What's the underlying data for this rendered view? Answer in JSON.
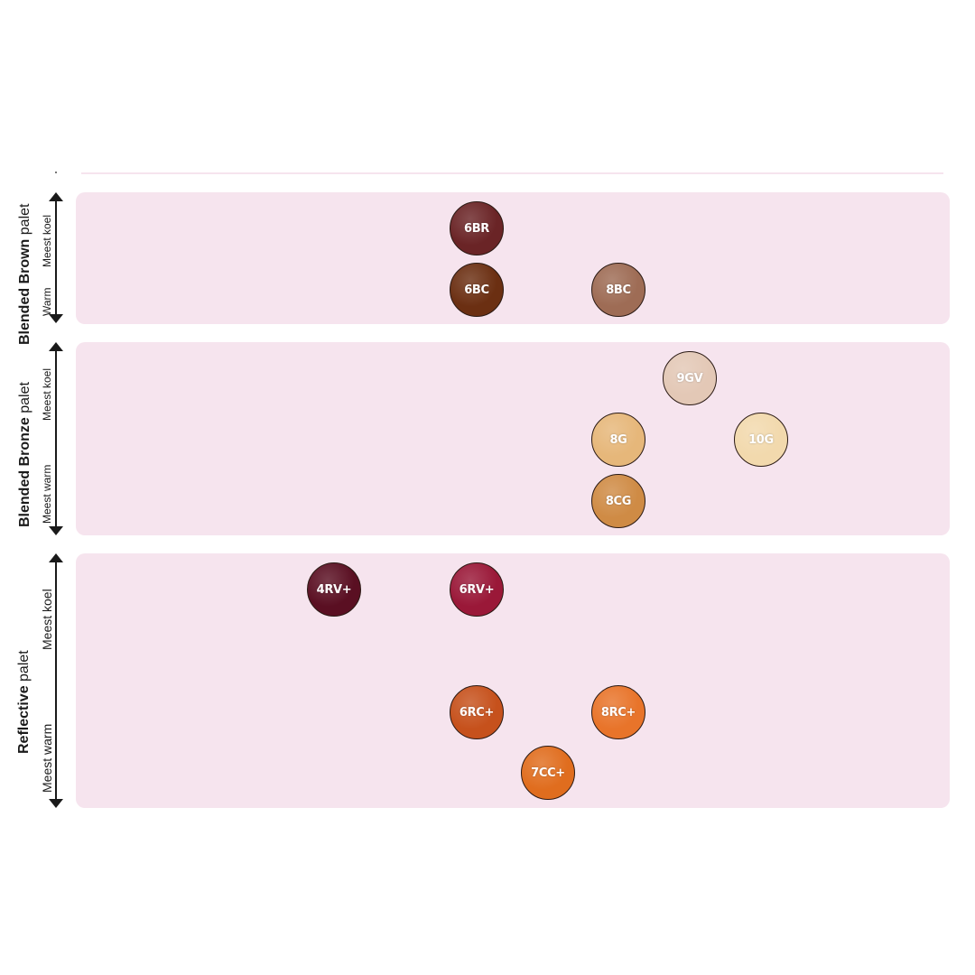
{
  "palettes": {
    "brown": {
      "title_bold": "Blended Brown",
      "title_light": " palet",
      "axis_cool": "Meest koel",
      "axis_warm": "Warm",
      "swatches": [
        {
          "code": "6BR",
          "color": "#6a2426"
        },
        {
          "code": "6BC",
          "color": "#6b2f12"
        },
        {
          "code": "8BC",
          "color": "#9e6c55"
        }
      ]
    },
    "bronze": {
      "title_bold": "Blended Bronze",
      "title_light": " palet",
      "axis_cool": "Meest koel",
      "axis_warm": "Meest warm",
      "swatches": [
        {
          "code": "9GV",
          "color": "#e3c8b6"
        },
        {
          "code": "8G",
          "color": "#e6b77a"
        },
        {
          "code": "10G",
          "color": "#f2d9ad"
        },
        {
          "code": "8CG",
          "color": "#cf8b45"
        }
      ]
    },
    "reflective": {
      "title_bold": "Reflective",
      "title_light": " palet",
      "axis_cool": "Meest koel",
      "axis_warm": "Meest warm",
      "swatches": [
        {
          "code": "4RV+",
          "color": "#5a0f22"
        },
        {
          "code": "6RV+",
          "color": "#9a1838"
        },
        {
          "code": "6RC+",
          "color": "#c6511c"
        },
        {
          "code": "8RC+",
          "color": "#e8742a"
        },
        {
          "code": "7CC+",
          "color": "#e06d1e"
        }
      ]
    }
  }
}
